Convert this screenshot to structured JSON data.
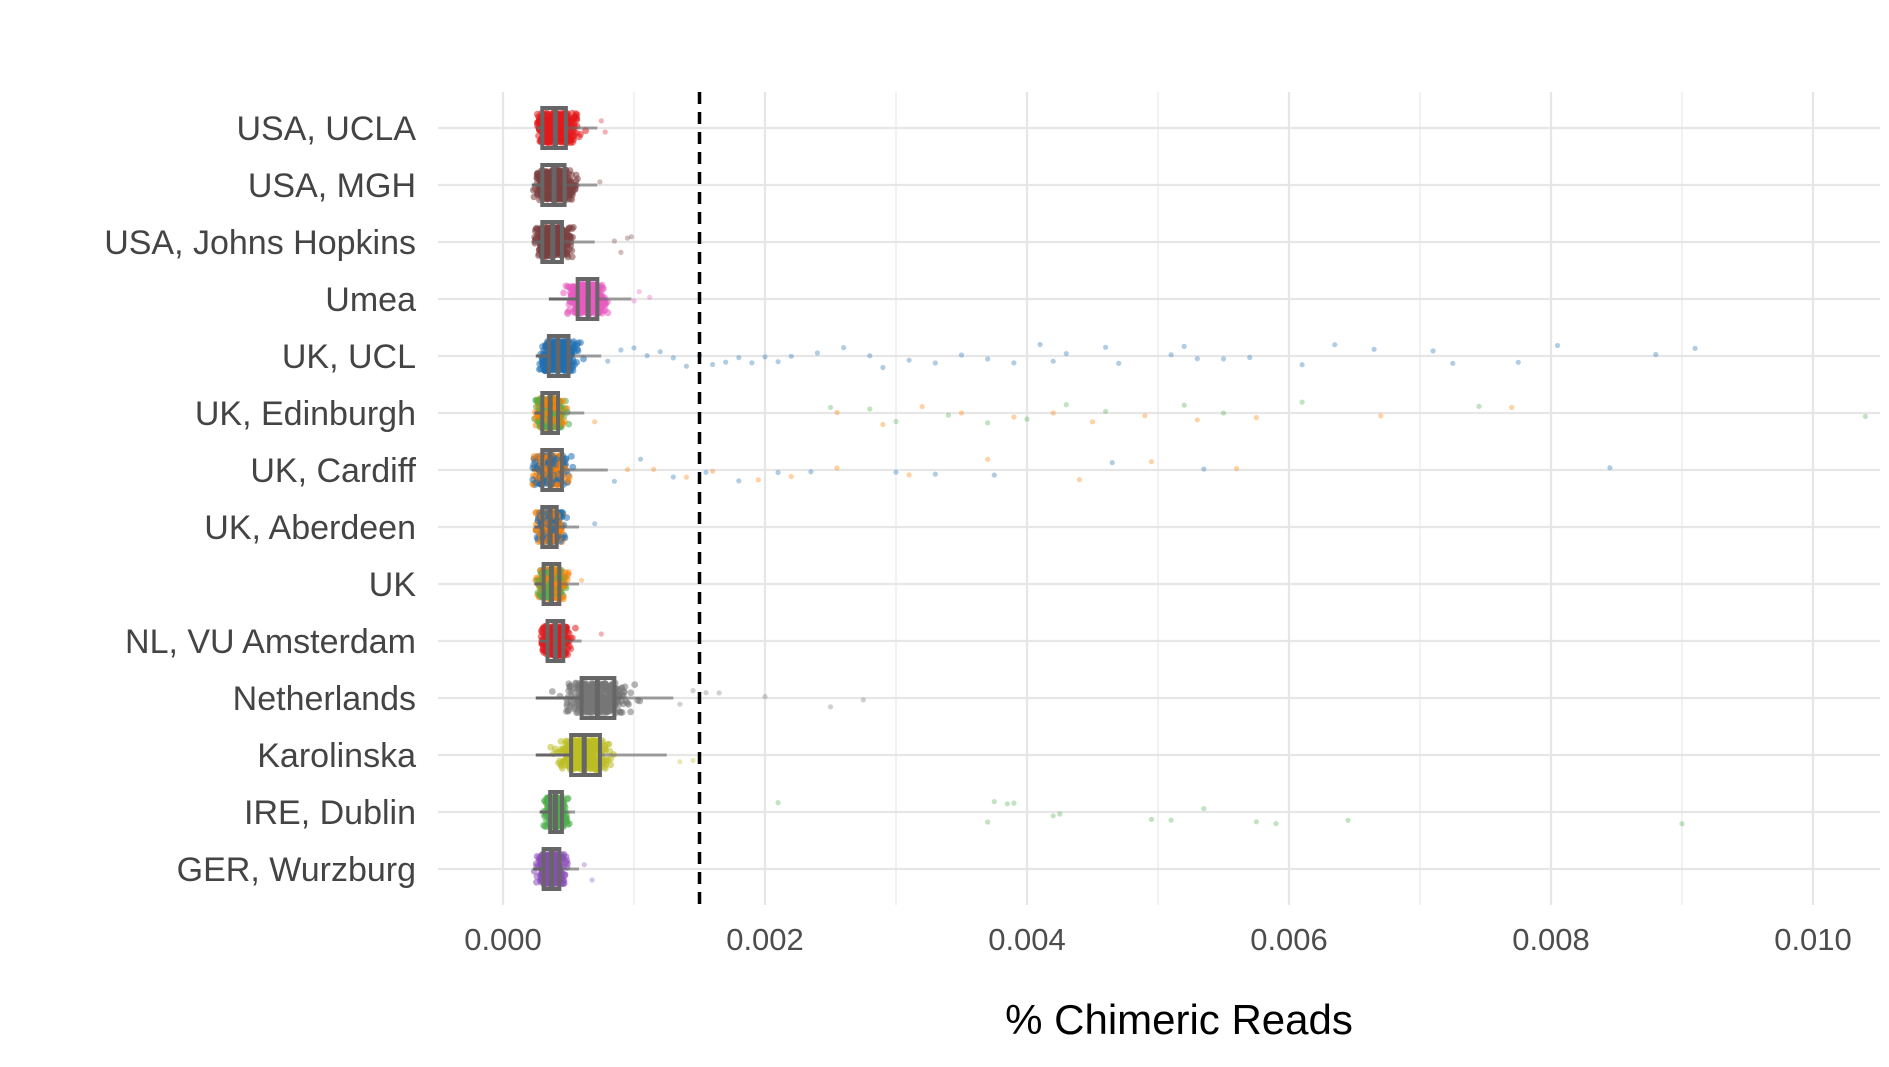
{
  "chart_data": {
    "type": "scatter",
    "subtype": "jittered strip plot with boxplots",
    "title": "",
    "xlabel": "% Chimeric Reads",
    "ylabel": "",
    "xlim": [
      -0.0005,
      0.0105
    ],
    "x_ticks": [
      0.0,
      0.002,
      0.004,
      0.006,
      0.008,
      0.01
    ],
    "x_tick_labels": [
      "0.000",
      "0.002",
      "0.004",
      "0.006",
      "0.008",
      "0.010"
    ],
    "grid": true,
    "legend": "none",
    "threshold_line": {
      "x": 0.0015,
      "style": "dashed",
      "color": "#000000"
    },
    "categories": [
      "USA, UCLA",
      "USA, MGH",
      "USA, Johns Hopkins",
      "Umea",
      "UK, UCL",
      "UK, Edinburgh",
      "UK, Cardiff",
      "UK, Aberdeen",
      "UK",
      "NL, VU Amsterdam",
      "Netherlands",
      "Karolinska",
      "IRE, Dublin",
      "GER, Wurzburg"
    ],
    "series": [
      {
        "category": "USA, UCLA",
        "colors": [
          "#E41A1C"
        ],
        "box": {
          "q1": 0.0003,
          "median": 0.0004,
          "q3": 0.00048
        },
        "core_range": [
          0.00026,
          0.00072
        ],
        "outliers": [
          0.00075,
          0.00078
        ]
      },
      {
        "category": "USA, MGH",
        "colors": [
          "#7B3F3F"
        ],
        "box": {
          "q1": 0.0003,
          "median": 0.00039,
          "q3": 0.00047
        },
        "core_range": [
          0.00022,
          0.00072
        ],
        "outliers": [
          0.00074
        ]
      },
      {
        "category": "USA, Johns Hopkins",
        "colors": [
          "#7B3F3F"
        ],
        "box": {
          "q1": 0.0003,
          "median": 0.00038,
          "q3": 0.00045
        },
        "core_range": [
          0.00024,
          0.0007
        ],
        "outliers": [
          0.00085,
          0.0009,
          0.00095,
          0.00098
        ]
      },
      {
        "category": "Umea",
        "colors": [
          "#E75BBF"
        ],
        "box": {
          "q1": 0.00057,
          "median": 0.00065,
          "q3": 0.00072
        },
        "core_range": [
          0.00035,
          0.00098
        ],
        "outliers": [
          0.001,
          0.00104,
          0.00112
        ]
      },
      {
        "category": "UK, UCL",
        "colors": [
          "#1F6FB2"
        ],
        "box": {
          "q1": 0.00035,
          "median": 0.00042,
          "q3": 0.0005
        },
        "core_range": [
          0.00025,
          0.00075
        ],
        "outliers": [
          0.0008,
          0.0009,
          0.001,
          0.0011,
          0.0012,
          0.0013,
          0.0014,
          0.0015,
          0.0016,
          0.0017,
          0.0018,
          0.0019,
          0.002,
          0.0021,
          0.0022,
          0.0024,
          0.0026,
          0.0028,
          0.0029,
          0.0031,
          0.0033,
          0.0035,
          0.0037,
          0.0039,
          0.0041,
          0.0042,
          0.0043,
          0.0046,
          0.0047,
          0.0051,
          0.0052,
          0.0053,
          0.0055,
          0.0057,
          0.0061,
          0.00635,
          0.00665,
          0.0071,
          0.00725,
          0.00775,
          0.00805,
          0.0088,
          0.0091
        ]
      },
      {
        "category": "UK, Edinburgh",
        "colors": [
          "#FF7F00",
          "#4DAF4A"
        ],
        "box": {
          "q1": 0.0003,
          "median": 0.00036,
          "q3": 0.00042
        },
        "core_range": [
          0.00024,
          0.00062
        ],
        "outliers": [
          0.0007,
          0.0025,
          0.00255,
          0.0028,
          0.0029,
          0.003,
          0.0032,
          0.0034,
          0.0035,
          0.0037,
          0.0039,
          0.004,
          0.0042,
          0.0043,
          0.0045,
          0.0046,
          0.0049,
          0.0052,
          0.0053,
          0.0055,
          0.00575,
          0.0061,
          0.0067,
          0.00745,
          0.0077,
          0.0104
        ]
      },
      {
        "category": "UK, Cardiff",
        "colors": [
          "#1F6FB2",
          "#FF7F00"
        ],
        "box": {
          "q1": 0.0003,
          "median": 0.00036,
          "q3": 0.00045
        },
        "core_range": [
          0.00022,
          0.0008
        ],
        "outliers": [
          0.00085,
          0.00095,
          0.00105,
          0.00115,
          0.0013,
          0.0014,
          0.00155,
          0.0016,
          0.0018,
          0.00195,
          0.0021,
          0.0022,
          0.00235,
          0.00255,
          0.003,
          0.0031,
          0.0033,
          0.0037,
          0.00375,
          0.0044,
          0.00465,
          0.00495,
          0.00535,
          0.0056,
          0.00845
        ]
      },
      {
        "category": "UK, Aberdeen",
        "colors": [
          "#1F6FB2",
          "#FF7F00"
        ],
        "box": {
          "q1": 0.0003,
          "median": 0.00036,
          "q3": 0.00041
        },
        "core_range": [
          0.00024,
          0.00058
        ],
        "outliers": [
          0.0007
        ]
      },
      {
        "category": "UK",
        "colors": [
          "#FF7F00",
          "#4DAF4A"
        ],
        "box": {
          "q1": 0.00031,
          "median": 0.00037,
          "q3": 0.00043
        },
        "core_range": [
          0.00024,
          0.00058
        ],
        "outliers": [
          0.0006
        ]
      },
      {
        "category": "NL, VU Amsterdam",
        "colors": [
          "#E41A1C"
        ],
        "box": {
          "q1": 0.00034,
          "median": 0.0004,
          "q3": 0.00046
        },
        "core_range": [
          0.00028,
          0.0006
        ],
        "outliers": [
          0.00075
        ]
      },
      {
        "category": "Netherlands",
        "colors": [
          "#777777"
        ],
        "box": {
          "q1": 0.0006,
          "median": 0.00072,
          "q3": 0.00085
        },
        "core_range": [
          0.00025,
          0.0013
        ],
        "outliers": [
          0.00135,
          0.00145,
          0.00155,
          0.00165,
          0.002,
          0.0025,
          0.00275
        ]
      },
      {
        "category": "Karolinska",
        "colors": [
          "#BCBD22"
        ],
        "box": {
          "q1": 0.00052,
          "median": 0.00062,
          "q3": 0.00074
        },
        "core_range": [
          0.00025,
          0.00125
        ],
        "outliers": [
          0.00135,
          0.00145
        ]
      },
      {
        "category": "IRE, Dublin",
        "colors": [
          "#4DAF4A"
        ],
        "box": {
          "q1": 0.00036,
          "median": 0.0004,
          "q3": 0.00045
        },
        "core_range": [
          0.00028,
          0.00055
        ],
        "outliers": [
          0.0021,
          0.0037,
          0.00375,
          0.00385,
          0.0039,
          0.0042,
          0.00425,
          0.00495,
          0.0051,
          0.00535,
          0.00575,
          0.0059,
          0.00645,
          0.009
        ]
      },
      {
        "category": "GER, Wurzburg",
        "colors": [
          "#8A4FB8"
        ],
        "box": {
          "q1": 0.00031,
          "median": 0.00037,
          "q3": 0.00043
        },
        "core_range": [
          0.00023,
          0.00058
        ],
        "outliers": [
          0.00062,
          0.00068
        ]
      }
    ]
  }
}
